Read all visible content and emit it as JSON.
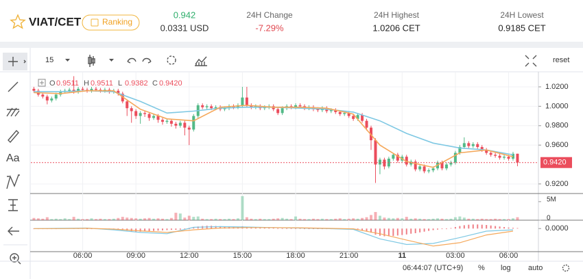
{
  "header": {
    "pair": "VIAT/CET",
    "badge": "Ranking",
    "price": "0.942",
    "price_usd": "0.0331 USD",
    "change_label": "24H Change",
    "change": "-7.29%",
    "high_label": "24H Highest",
    "high": "1.0206 CET",
    "low_label": "24H Lowest",
    "low": "0.9185 CET"
  },
  "toolbar": {
    "interval": "15",
    "reset": "reset",
    "text_tool": "Aa"
  },
  "footer": {
    "clock": "06:44:07 (UTC+9)",
    "percent": "%",
    "log": "log",
    "auto": "auto"
  },
  "chart_data": {
    "type": "candlestick",
    "up_color": "#53b987",
    "down_color": "#eb4d5c",
    "grid": true,
    "x": [
      3.25,
      3.5,
      3.75,
      4,
      4.25,
      4.5,
      4.75,
      5,
      5.25,
      5.5,
      5.75,
      6,
      6.25,
      6.5,
      6.75,
      7,
      7.25,
      7.5,
      7.75,
      8,
      8.25,
      8.5,
      8.75,
      9,
      9.25,
      9.5,
      9.75,
      10,
      10.25,
      10.5,
      10.75,
      11,
      11.25,
      11.5,
      11.75,
      12,
      12.25,
      12.5,
      12.75,
      13,
      13.25,
      13.5,
      13.75,
      14,
      14.25,
      14.5,
      14.75,
      15,
      15.25,
      15.5,
      15.75,
      16,
      16.25,
      16.5,
      16.75,
      17,
      17.25,
      17.5,
      17.75,
      18,
      18.25,
      18.5,
      18.75,
      19,
      19.25,
      19.5,
      19.75,
      20,
      20.25,
      20.5,
      20.75,
      21,
      21.25,
      21.5,
      21.75,
      22,
      22.25,
      22.5,
      22.75,
      23,
      23.25,
      23.5,
      23.75,
      24,
      24.25,
      24.5,
      24.75,
      25,
      25.25,
      25.5,
      25.75,
      26,
      26.25,
      26.5,
      26.75,
      27,
      27.25,
      27.5,
      27.75,
      28,
      28.25,
      28.5,
      28.75,
      29,
      29.25,
      29.5,
      29.75,
      30,
      30.25,
      30.5
    ],
    "open": [
      1.018,
      1.016,
      1.012,
      1.01,
      1.006,
      1.008,
      1.012,
      1.015,
      1.016,
      1.017,
      1.015,
      1.018,
      1.017,
      1.016,
      1.018,
      1.017,
      1.016,
      1.017,
      1.015,
      1.016,
      1.013,
      1.005,
      0.998,
      0.995,
      0.99,
      0.993,
      0.992,
      0.988,
      0.99,
      0.986,
      0.984,
      0.985,
      0.982,
      0.98,
      0.983,
      0.978,
      0.976,
      0.99,
      1.001,
      0.999,
      1.0,
      0.998,
      0.999,
      0.997,
      0.998,
      1.0,
      0.999,
      1.001,
      1.009,
      1.001,
      0.999,
      1.0,
      0.998,
      0.999,
      1.0,
      0.997,
      0.993,
      0.998,
      1.0,
      0.999,
      1.001,
      1.0,
      0.998,
      0.999,
      0.997,
      0.996,
      0.998,
      0.995,
      0.996,
      0.994,
      0.992,
      0.993,
      0.99,
      0.987,
      0.991,
      0.985,
      0.978,
      0.965,
      0.94,
      0.945,
      0.938,
      0.946,
      0.95,
      0.944,
      0.948,
      0.94,
      0.943,
      0.935,
      0.938,
      0.933,
      0.934,
      0.936,
      0.942,
      0.936,
      0.94,
      0.942,
      0.952,
      0.958,
      0.962,
      0.959,
      0.961,
      0.958,
      0.955,
      0.952,
      0.95,
      0.949,
      0.947,
      0.948,
      0.946,
      0.9511
    ],
    "high": [
      1.02,
      1.018,
      1.014,
      1.012,
      1.01,
      1.014,
      1.017,
      1.018,
      1.019,
      1.031,
      1.02,
      1.02,
      1.019,
      1.02,
      1.02,
      1.019,
      1.019,
      1.019,
      1.018,
      1.018,
      1.015,
      1.007,
      1.0,
      0.997,
      0.995,
      0.995,
      0.994,
      0.992,
      0.992,
      0.988,
      0.987,
      0.987,
      0.984,
      0.985,
      0.985,
      0.98,
      0.992,
      1.003,
      1.003,
      1.002,
      1.002,
      1.001,
      1.001,
      1.0,
      1.002,
      1.002,
      1.003,
      1.02,
      1.02,
      1.003,
      1.002,
      1.002,
      1.001,
      1.002,
      1.002,
      0.999,
      1.0,
      1.002,
      1.002,
      1.003,
      1.003,
      1.002,
      1.001,
      1.001,
      0.999,
      1.0,
      1.0,
      0.998,
      0.998,
      0.996,
      0.995,
      0.995,
      0.992,
      0.993,
      0.993,
      0.987,
      0.98,
      0.967,
      0.947,
      0.947,
      0.948,
      0.952,
      0.952,
      0.95,
      0.95,
      0.945,
      0.945,
      0.94,
      0.94,
      0.936,
      0.938,
      0.944,
      0.944,
      0.942,
      0.944,
      0.954,
      0.96,
      0.968,
      0.964,
      0.963,
      0.963,
      0.96,
      0.957,
      0.954,
      0.952,
      0.951,
      0.95,
      0.95,
      0.953,
      0.9511
    ],
    "low": [
      1.014,
      1.01,
      1.008,
      1.002,
      1.004,
      1.006,
      1.01,
      1.013,
      1.014,
      1.013,
      1.013,
      1.015,
      1.014,
      1.014,
      1.015,
      1.014,
      1.014,
      1.013,
      1.013,
      1.011,
      1.003,
      0.99,
      0.983,
      0.987,
      0.982,
      0.989,
      0.985,
      0.986,
      0.983,
      0.981,
      0.982,
      0.979,
      0.977,
      0.978,
      0.97,
      0.96,
      0.974,
      0.988,
      0.997,
      0.997,
      0.996,
      0.996,
      0.995,
      0.995,
      0.996,
      0.997,
      0.997,
      0.999,
      0.999,
      0.997,
      0.997,
      0.996,
      0.996,
      0.997,
      0.995,
      0.991,
      0.991,
      0.996,
      0.997,
      0.997,
      0.998,
      0.996,
      0.996,
      0.995,
      0.994,
      0.994,
      0.993,
      0.993,
      0.992,
      0.99,
      0.99,
      0.988,
      0.985,
      0.985,
      0.983,
      0.975,
      0.955,
      0.921,
      0.93,
      0.935,
      0.936,
      0.944,
      0.942,
      0.942,
      0.938,
      0.938,
      0.933,
      0.933,
      0.931,
      0.931,
      0.932,
      0.934,
      0.934,
      0.934,
      0.938,
      0.94,
      0.95,
      0.956,
      0.957,
      0.957,
      0.956,
      0.953,
      0.95,
      0.948,
      0.947,
      0.945,
      0.945,
      0.944,
      0.944,
      0.9382
    ],
    "close": [
      1.016,
      1.012,
      1.01,
      1.006,
      1.008,
      1.012,
      1.015,
      1.016,
      1.017,
      1.015,
      1.018,
      1.017,
      1.016,
      1.018,
      1.017,
      1.016,
      1.017,
      1.015,
      1.016,
      1.013,
      1.005,
      0.998,
      0.995,
      0.99,
      0.993,
      0.992,
      0.988,
      0.99,
      0.986,
      0.984,
      0.985,
      0.982,
      0.98,
      0.983,
      0.978,
      0.976,
      0.99,
      1.001,
      0.999,
      1.0,
      0.998,
      0.999,
      0.997,
      0.998,
      1.0,
      0.999,
      1.001,
      1.009,
      1.001,
      0.999,
      1.0,
      0.998,
      0.999,
      1.0,
      0.997,
      0.993,
      0.998,
      1.0,
      0.999,
      1.001,
      1.0,
      0.998,
      0.999,
      0.997,
      0.996,
      0.998,
      0.995,
      0.996,
      0.994,
      0.992,
      0.993,
      0.99,
      0.987,
      0.991,
      0.985,
      0.978,
      0.965,
      0.94,
      0.945,
      0.938,
      0.946,
      0.95,
      0.944,
      0.948,
      0.94,
      0.943,
      0.935,
      0.938,
      0.933,
      0.934,
      0.936,
      0.942,
      0.936,
      0.94,
      0.942,
      0.952,
      0.958,
      0.962,
      0.959,
      0.961,
      0.958,
      0.955,
      0.952,
      0.95,
      0.949,
      0.947,
      0.948,
      0.946,
      0.9511,
      0.942
    ],
    "close_label": "0.9420",
    "ohlc_keys": [
      "O",
      "H",
      "L",
      "C"
    ],
    "xlim": [
      3.08,
      31.68
    ],
    "xticks": [
      {
        "value": 6,
        "label": "06:00"
      },
      {
        "value": 9,
        "label": "09:00"
      },
      {
        "value": 12,
        "label": "12:00"
      },
      {
        "value": 15,
        "label": "15:00"
      },
      {
        "value": 18,
        "label": "18:00"
      },
      {
        "value": 21,
        "label": "21:00"
      },
      {
        "value": 24,
        "label": "11"
      },
      {
        "value": 27,
        "label": "03:00"
      },
      {
        "value": 30,
        "label": "06:00"
      }
    ],
    "ylim": [
      0.9108,
      1.0341
    ],
    "yticks": [
      {
        "value": 0.92,
        "label": "0.9200"
      },
      {
        "value": 0.96,
        "label": "0.9600"
      },
      {
        "value": 0.98,
        "label": "0.9800"
      },
      {
        "value": 1.0,
        "label": "1.0000"
      },
      {
        "value": 1.02,
        "label": "1.0200"
      }
    ],
    "lines": [
      {
        "color": "#7ec8e3",
        "x": [
          3.25,
          4.75,
          6.25,
          7.75,
          9.25,
          10.75,
          12.25,
          13.75,
          15.25,
          16.75,
          18.25,
          19.75,
          21.25,
          22.75,
          24.25,
          25.75,
          27.25,
          28.75,
          30.25
        ],
        "values": [
          1.015,
          1.015,
          1.016,
          1.015,
          1.005,
          0.993,
          0.995,
          0.998,
          0.999,
          0.999,
          0.998,
          0.997,
          0.994,
          0.985,
          0.972,
          0.962,
          0.957,
          0.955,
          0.95
        ]
      },
      {
        "color": "#f5a85a",
        "x": [
          3.25,
          4.75,
          6.25,
          7.75,
          9.25,
          10.75,
          12.25,
          13.75,
          15.25,
          16.75,
          18.25,
          19.75,
          21.25,
          22.75,
          24.25,
          25.75,
          27.25,
          28.75,
          30.25
        ],
        "values": [
          1.014,
          1.013,
          1.016,
          1.016,
          0.997,
          0.987,
          0.985,
          0.999,
          1.001,
          0.999,
          0.999,
          0.998,
          0.992,
          0.96,
          0.943,
          0.937,
          0.952,
          0.955,
          0.948
        ]
      }
    ],
    "volume": {
      "values": [
        0.6,
        0.5,
        0.4,
        0.8,
        0.3,
        0.4,
        0.3,
        0.5,
        0.3,
        0.9,
        0.4,
        0.3,
        0.3,
        0.5,
        0.3,
        0.4,
        0.3,
        0.3,
        0.4,
        0.6,
        0.9,
        0.7,
        0.6,
        0.5,
        0.4,
        0.5,
        0.6,
        0.4,
        0.5,
        0.4,
        0.3,
        0.6,
        2.0,
        1.8,
        0.7,
        1.2,
        0.9,
        1.0,
        0.4,
        0.3,
        0.3,
        0.4,
        0.3,
        0.3,
        0.4,
        0.3,
        0.5,
        6.5,
        0.8,
        0.4,
        0.3,
        0.4,
        0.3,
        0.3,
        0.4,
        0.5,
        0.6,
        0.4,
        0.3,
        1.0,
        0.4,
        0.3,
        0.3,
        0.4,
        0.3,
        0.4,
        0.3,
        0.3,
        0.4,
        0.5,
        0.3,
        0.4,
        0.5,
        0.4,
        0.6,
        0.8,
        1.4,
        2.2,
        1.2,
        0.7,
        0.6,
        0.5,
        0.6,
        0.5,
        0.9,
        0.4,
        0.5,
        0.4,
        0.3,
        0.3,
        0.4,
        0.5,
        0.4,
        0.3,
        0.4,
        0.8,
        1.0,
        0.7,
        0.4,
        0.4,
        0.3,
        0.4,
        0.3,
        0.3,
        0.4,
        0.3,
        0.3,
        0.3,
        0.5,
        0.8
      ],
      "ylim": [
        0,
        7
      ],
      "yticks": [
        0,
        {
          "value": 5,
          "label": "5M"
        }
      ]
    },
    "macd": {
      "hist_color": "#ef7f86",
      "macd_color": "#7ec8e3",
      "signal_color": "#f5a85a",
      "hist": [
        0,
        0,
        0,
        0,
        0,
        0,
        0.0002,
        0.0002,
        0.0002,
        0.0001,
        0.0001,
        0.0001,
        0,
        0,
        0,
        0,
        0,
        0,
        -0.0002,
        -0.0004,
        -0.0006,
        -0.0008,
        -0.001,
        -0.0012,
        -0.0012,
        -0.0011,
        -0.001,
        -0.0009,
        -0.0008,
        -0.0007,
        -0.0006,
        -0.0005,
        -0.0005,
        -0.0004,
        -0.0003,
        -0.0002,
        0.0004,
        0.0008,
        0.001,
        0.0011,
        0.0011,
        0.001,
        0.0009,
        0.0008,
        0.0007,
        0.0006,
        0.0006,
        0.0009,
        0.0007,
        0.0005,
        0.0004,
        0.0003,
        0.0003,
        0.0002,
        0.0002,
        0.0001,
        0.0001,
        0.0001,
        0.0001,
        0.0001,
        0.0001,
        0,
        0,
        0,
        -0.0001,
        -0.0001,
        -0.0001,
        -0.0001,
        -0.0002,
        -0.0002,
        -0.0002,
        -0.0003,
        -0.0003,
        -0.0003,
        -0.0006,
        -0.001,
        -0.0016,
        -0.0024,
        -0.0028,
        -0.003,
        -0.003,
        -0.0029,
        -0.0027,
        -0.0025,
        -0.0023,
        -0.002,
        -0.0018,
        -0.0015,
        -0.0012,
        -0.0009,
        -0.0006,
        -0.0004,
        -0.0002,
        0,
        0.0002,
        0.0006,
        0.001,
        0.0013,
        0.0015,
        0.0016,
        0.0016,
        0.0015,
        0.0014,
        0.0012,
        0.001,
        0.0008,
        0.0006,
        0.0004,
        0.0003,
        0.0002
      ],
      "x": [
        3.25,
        4.75,
        6.25,
        7.75,
        9.25,
        10.75,
        12.25,
        13.75,
        15.25,
        16.75,
        18.25,
        19.75,
        21.25,
        22.75,
        24.25,
        25.75,
        27.25,
        28.75,
        30.25
      ],
      "macd": [
        0,
        0.0001,
        0.0002,
        -0.0005,
        -0.0015,
        -0.002,
        0.0005,
        0.0008,
        0.0006,
        0.0004,
        0.0002,
        0,
        -0.0003,
        -0.004,
        -0.0062,
        -0.0058,
        -0.0035,
        -0.001,
        -0.0005
      ],
      "signal": [
        0,
        0,
        0.0001,
        -0.0002,
        -0.0009,
        -0.0015,
        -0.0005,
        0.0002,
        0.0004,
        0.0004,
        0.0003,
        0.0001,
        -0.0001,
        -0.002,
        -0.0045,
        -0.0068,
        -0.0055,
        -0.0025,
        -0.001
      ],
      "ylim": [
        -0.009,
        0.003
      ],
      "yticks": [
        {
          "value": 0,
          "label": "0.0000"
        }
      ]
    }
  }
}
